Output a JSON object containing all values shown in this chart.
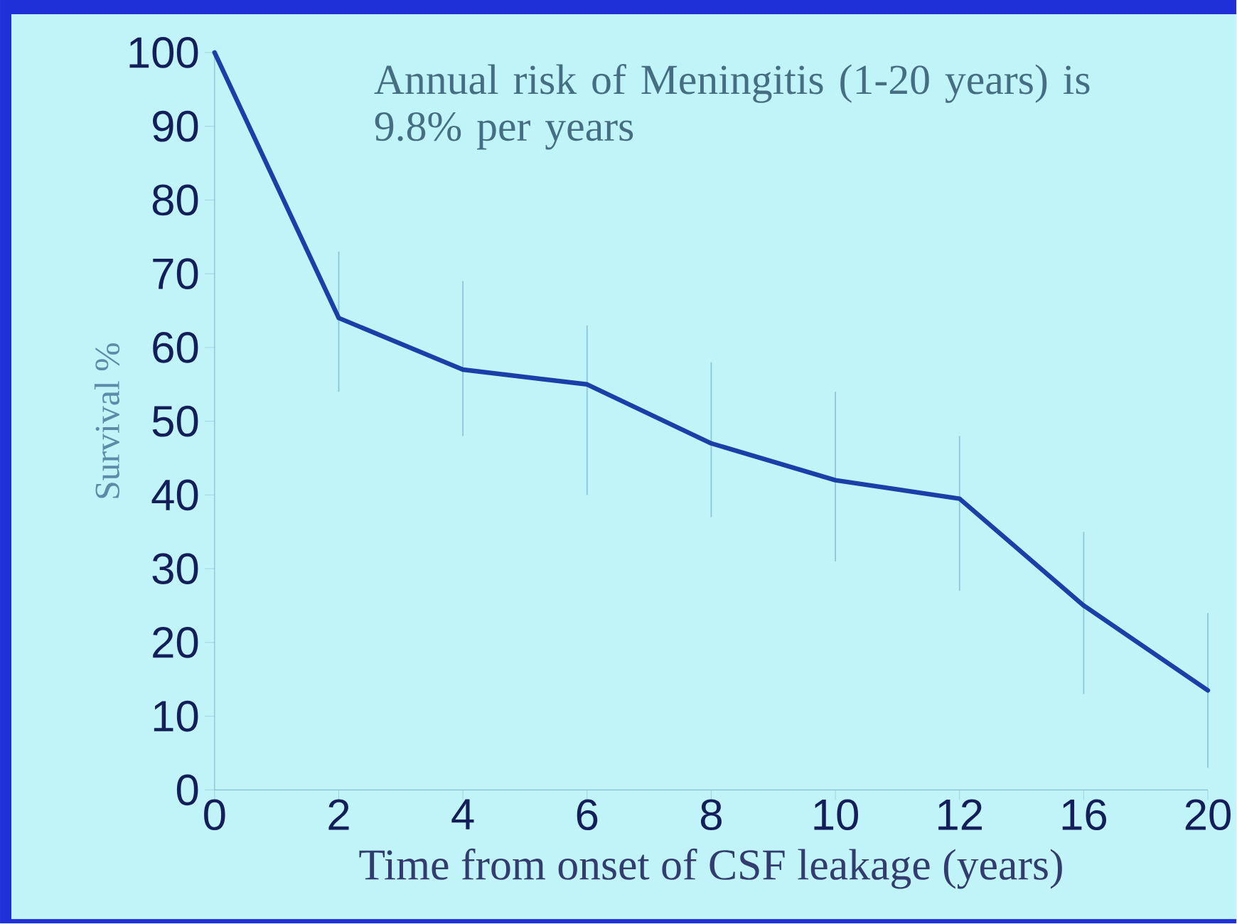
{
  "chart_data": {
    "type": "line",
    "xlabel": "Time from onset of CSF leakage (years)",
    "ylabel": "Survival %",
    "annotations": [
      "Annual risk of Meningitis (1-20 years) is 9.8% per years"
    ],
    "categories": [
      "0",
      "2",
      "4",
      "6",
      "8",
      "10",
      "12",
      "16",
      "20"
    ],
    "series": [
      {
        "color": "#1a3fa8",
        "values": [
          100,
          64,
          57,
          55,
          47,
          42,
          39.5,
          25,
          13.5
        ],
        "errors": [
          null,
          [
            54,
            73
          ],
          [
            48,
            69
          ],
          [
            40,
            63
          ],
          [
            37,
            58
          ],
          [
            31,
            54
          ],
          [
            27,
            48
          ],
          [
            13,
            35
          ],
          [
            3,
            24
          ]
        ]
      }
    ],
    "ylim": [
      0,
      100
    ],
    "yticks": [
      0,
      10,
      20,
      30,
      40,
      50,
      60,
      70,
      80,
      90,
      100
    ],
    "grid": false,
    "marker": "none",
    "line_style": "solid"
  }
}
